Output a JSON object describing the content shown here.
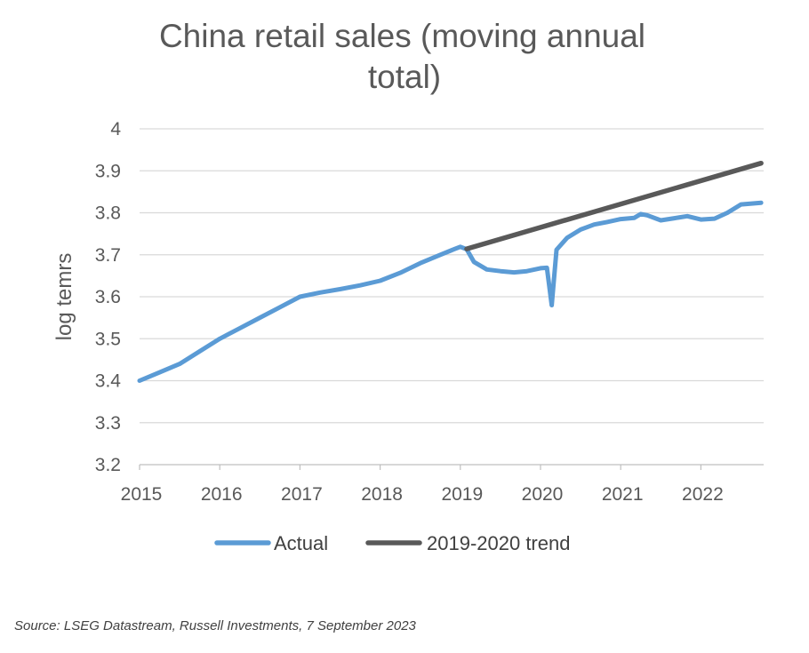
{
  "chart_data": {
    "type": "line",
    "title_line1": "China retail sales (moving annual",
    "title_line2": "total)",
    "ylabel": "log temrs",
    "xlabel": "",
    "ylim": [
      3.2,
      4.0
    ],
    "xlim": [
      2015,
      2022.78
    ],
    "y_ticks": [
      "3.2",
      "3.3",
      "3.4",
      "3.5",
      "3.6",
      "3.7",
      "3.8",
      "3.9",
      "4"
    ],
    "x_ticks": [
      "2015",
      "2016",
      "2017",
      "2018",
      "2019",
      "2020",
      "2021",
      "2022"
    ],
    "grid": "horizontal",
    "legend_position": "bottom",
    "series": [
      {
        "name": "Actual",
        "color": "#5B9BD5",
        "points": [
          [
            2015.0,
            3.4
          ],
          [
            2015.25,
            3.42
          ],
          [
            2015.5,
            3.44
          ],
          [
            2015.75,
            3.47
          ],
          [
            2016.0,
            3.5
          ],
          [
            2016.25,
            3.525
          ],
          [
            2016.5,
            3.55
          ],
          [
            2016.75,
            3.575
          ],
          [
            2017.0,
            3.6
          ],
          [
            2017.25,
            3.61
          ],
          [
            2017.5,
            3.618
          ],
          [
            2017.75,
            3.627
          ],
          [
            2018.0,
            3.638
          ],
          [
            2018.25,
            3.657
          ],
          [
            2018.5,
            3.68
          ],
          [
            2018.75,
            3.7
          ],
          [
            2018.92,
            3.713
          ],
          [
            2019.0,
            3.719
          ],
          [
            2019.08,
            3.713
          ],
          [
            2019.17,
            3.683
          ],
          [
            2019.33,
            3.665
          ],
          [
            2019.5,
            3.661
          ],
          [
            2019.67,
            3.658
          ],
          [
            2019.83,
            3.661
          ],
          [
            2020.0,
            3.668
          ],
          [
            2020.08,
            3.669
          ],
          [
            2020.14,
            3.58
          ],
          [
            2020.2,
            3.712
          ],
          [
            2020.33,
            3.74
          ],
          [
            2020.5,
            3.76
          ],
          [
            2020.67,
            3.772
          ],
          [
            2020.83,
            3.778
          ],
          [
            2021.0,
            3.785
          ],
          [
            2021.17,
            3.788
          ],
          [
            2021.25,
            3.797
          ],
          [
            2021.33,
            3.794
          ],
          [
            2021.5,
            3.782
          ],
          [
            2021.67,
            3.787
          ],
          [
            2021.83,
            3.792
          ],
          [
            2022.0,
            3.784
          ],
          [
            2022.17,
            3.786
          ],
          [
            2022.33,
            3.8
          ],
          [
            2022.5,
            3.82
          ],
          [
            2022.75,
            3.824
          ]
        ]
      },
      {
        "name": "2019-2020 trend",
        "color": "#595959",
        "points": [
          [
            2019.08,
            3.714
          ],
          [
            2022.75,
            3.918
          ]
        ]
      }
    ]
  },
  "source": "Source: LSEG Datastream, Russell Investments, 7 September 2023"
}
